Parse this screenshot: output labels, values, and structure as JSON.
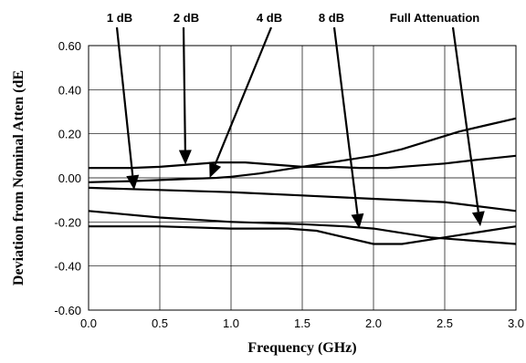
{
  "chart_data": {
    "type": "line",
    "xlabel": "Frequency (GHz)",
    "ylabel": "Deviation from Nominal Atten (dE",
    "xlim": [
      0,
      3
    ],
    "ylim": [
      -0.6,
      0.6
    ],
    "x_ticks": [
      0,
      0.5,
      1,
      1.5,
      2,
      2.5,
      3
    ],
    "x_tick_labels": [
      "0.0",
      "0.5",
      "1.0",
      "1.5",
      "2.0",
      "2.5",
      "3.0"
    ],
    "y_ticks": [
      0.6,
      0.4,
      0.2,
      0,
      -0.2,
      -0.4,
      -0.6
    ],
    "y_tick_labels": [
      "0.60",
      "0.40",
      "0.20",
      "0.00",
      "-0.20",
      "-0.40",
      "-0.60"
    ],
    "grid": true,
    "series": [
      {
        "x": [
          0,
          0.3,
          0.5,
          0.7,
          0.9,
          1.1,
          1.3,
          1.5,
          1.7,
          1.9,
          2.1,
          2.3,
          2.5,
          2.7,
          3.0
        ],
        "values": [
          0.045,
          0.045,
          0.05,
          0.06,
          0.07,
          0.07,
          0.06,
          0.05,
          0.05,
          0.045,
          0.045,
          0.055,
          0.065,
          0.08,
          0.1
        ]
      },
      {
        "x": [
          0,
          0.3,
          0.5,
          0.7,
          0.9,
          1.0,
          1.2,
          1.4,
          1.6,
          1.8,
          2.0,
          2.2,
          2.4,
          2.6,
          2.8,
          3.0
        ],
        "values": [
          -0.02,
          -0.015,
          -0.01,
          -0.005,
          0.0,
          0.005,
          0.02,
          0.04,
          0.06,
          0.08,
          0.1,
          0.13,
          0.17,
          0.21,
          0.24,
          0.27
        ]
      },
      {
        "x": [
          0,
          0.5,
          1.0,
          1.5,
          2.0,
          2.5,
          3.0
        ],
        "values": [
          -0.045,
          -0.055,
          -0.065,
          -0.08,
          -0.095,
          -0.11,
          -0.15
        ]
      },
      {
        "x": [
          0,
          0.5,
          1.0,
          1.5,
          1.8,
          2.0,
          2.2,
          2.4,
          2.6,
          2.8,
          3.0
        ],
        "values": [
          -0.15,
          -0.18,
          -0.2,
          -0.21,
          -0.22,
          -0.23,
          -0.25,
          -0.27,
          -0.28,
          -0.29,
          -0.3
        ]
      },
      {
        "x": [
          0,
          0.5,
          1.0,
          1.4,
          1.6,
          1.8,
          2.0,
          2.2,
          2.4,
          2.6,
          2.8,
          3.0
        ],
        "values": [
          -0.22,
          -0.22,
          -0.23,
          -0.23,
          -0.24,
          -0.27,
          -0.3,
          -0.3,
          -0.28,
          -0.26,
          -0.24,
          -0.22
        ]
      }
    ],
    "annotations": [
      {
        "text": "1 dB",
        "point_x": 0.32,
        "point_y": -0.055
      },
      {
        "text": "2 dB",
        "point_x": 0.68,
        "point_y": 0.06
      },
      {
        "text": "4 dB",
        "point_x": 0.85,
        "point_y": 0.0
      },
      {
        "text": "8 dB",
        "point_x": 1.9,
        "point_y": -0.23
      },
      {
        "text": "Full Attenuation",
        "point_x": 2.75,
        "point_y": -0.22
      }
    ]
  }
}
